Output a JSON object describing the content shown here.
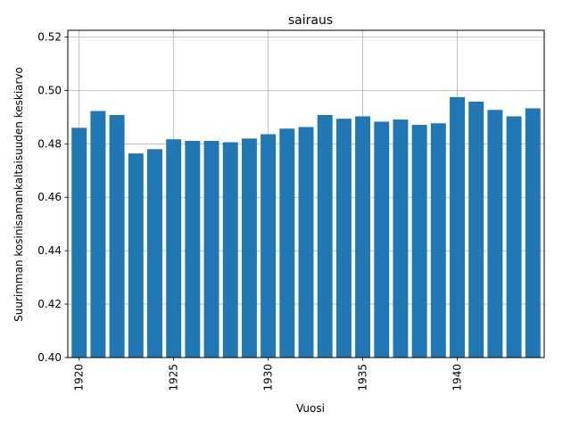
{
  "chart_data": {
    "type": "bar",
    "title": "sairaus",
    "xlabel": "Vuosi",
    "ylabel": "Suurimman kosinisamankaltaisuuden keskiarvo",
    "x": [
      1920,
      1921,
      1922,
      1923,
      1924,
      1925,
      1926,
      1927,
      1928,
      1929,
      1930,
      1931,
      1932,
      1933,
      1934,
      1935,
      1936,
      1937,
      1938,
      1939,
      1940,
      1941,
      1942,
      1943,
      1944
    ],
    "values": [
      0.486,
      0.4923,
      0.4908,
      0.4764,
      0.478,
      0.4817,
      0.4811,
      0.4811,
      0.4806,
      0.482,
      0.4836,
      0.4857,
      0.4863,
      0.4908,
      0.4894,
      0.4903,
      0.4883,
      0.4891,
      0.4871,
      0.4877,
      0.4975,
      0.4958,
      0.4927,
      0.4903,
      0.4933
    ],
    "xticks": [
      1920,
      1925,
      1930,
      1935,
      1940
    ],
    "yticks": [
      "0.40",
      "0.42",
      "0.44",
      "0.46",
      "0.48",
      "0.50",
      "0.52"
    ],
    "xlim": [
      1919.4,
      1944.6
    ],
    "ylim": [
      0.4,
      0.5225
    ],
    "grid": true,
    "bar_color": "#1f77b4"
  }
}
